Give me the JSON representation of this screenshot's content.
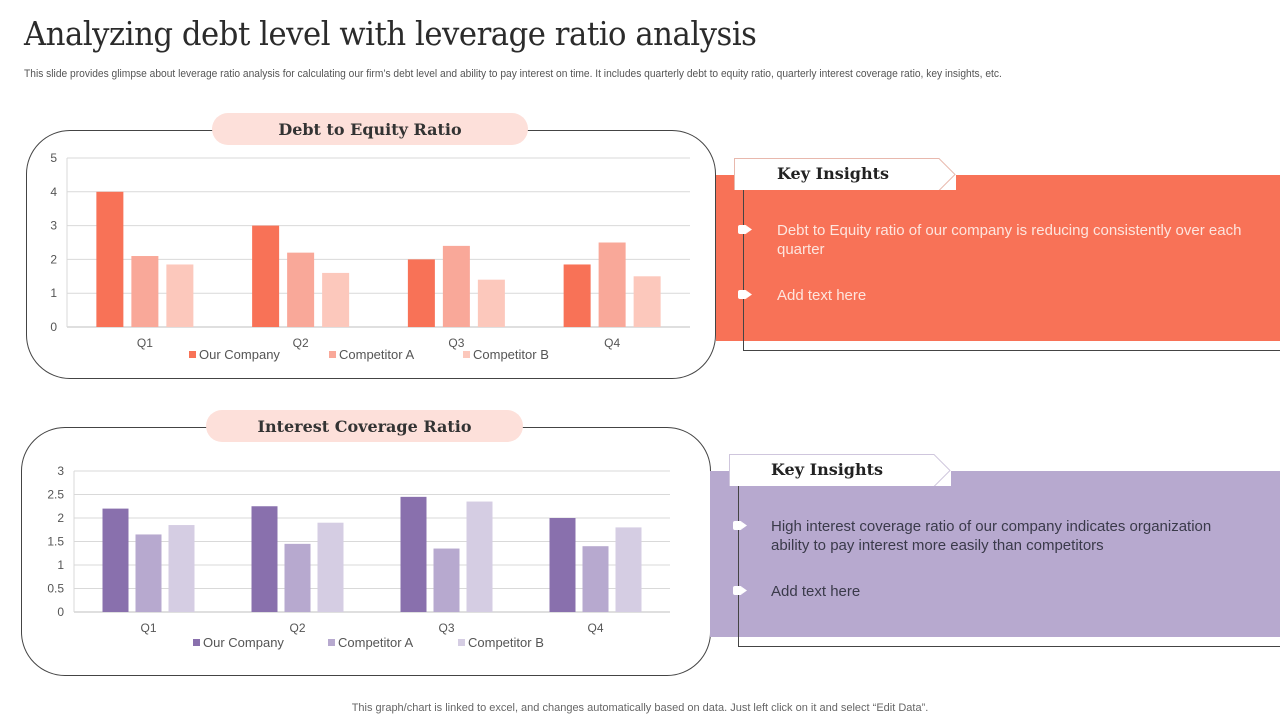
{
  "header": {
    "title": "Analyzing debt level with leverage ratio analysis",
    "subtitle": "This slide provides glimpse about leverage ratio analysis for calculating our firm’s debt level and ability to  pay interest on time. It includes quarterly debt to equity ratio, quarterly interest coverage ratio, key insights, etc."
  },
  "footer": "This graph/chart is linked to excel,  and changes automatically based on data. Just left click on it and select “Edit Data”.",
  "colors": {
    "debt_band": "#f87257",
    "coverage_band": "#b7a9cf",
    "title_pill": "#fde0da"
  },
  "insights": [
    {
      "heading": "Key Insights",
      "bullets": [
        "Debt to Equity ratio of our company is reducing consistently  over each quarter",
        "Add text here"
      ]
    },
    {
      "heading": "Key Insights",
      "bullets": [
        "High interest coverage ratio of our company indicates organization ability to pay interest more easily than competitors",
        "Add text here"
      ]
    }
  ],
  "chart_data": [
    {
      "type": "bar",
      "title": "Debt to Equity Ratio",
      "categories": [
        "Q1",
        "Q2",
        "Q3",
        "Q4"
      ],
      "series": [
        {
          "name": "Our Company",
          "values": [
            4.0,
            3.0,
            2.0,
            1.85
          ],
          "color": "#f87257"
        },
        {
          "name": "Competitor A",
          "values": [
            2.1,
            2.2,
            2.4,
            2.5
          ],
          "color": "#f9a899"
        },
        {
          "name": "Competitor B",
          "values": [
            1.85,
            1.6,
            1.4,
            1.5
          ],
          "color": "#fcc8bc"
        }
      ],
      "yticks": [
        "0",
        "1",
        "2",
        "3",
        "4",
        "5"
      ],
      "ylim": [
        0,
        5
      ],
      "xlabel": "",
      "ylabel": "",
      "grid": true,
      "legend": "bottom"
    },
    {
      "type": "bar",
      "title": "Interest Coverage Ratio",
      "categories": [
        "Q1",
        "Q2",
        "Q3",
        "Q4"
      ],
      "series": [
        {
          "name": "Our Company",
          "values": [
            2.2,
            2.25,
            2.45,
            2.0
          ],
          "color": "#8970ad"
        },
        {
          "name": "Competitor A",
          "values": [
            1.65,
            1.45,
            1.35,
            1.4
          ],
          "color": "#b7a9cf"
        },
        {
          "name": "Competitor B",
          "values": [
            1.85,
            1.9,
            2.35,
            1.8
          ],
          "color": "#d5cde3"
        }
      ],
      "yticks": [
        "0",
        "0.5",
        "1",
        "1.5",
        "2",
        "2.5",
        "3"
      ],
      "ylim": [
        0,
        3
      ],
      "xlabel": "",
      "ylabel": "",
      "grid": true,
      "legend": "bottom"
    }
  ]
}
